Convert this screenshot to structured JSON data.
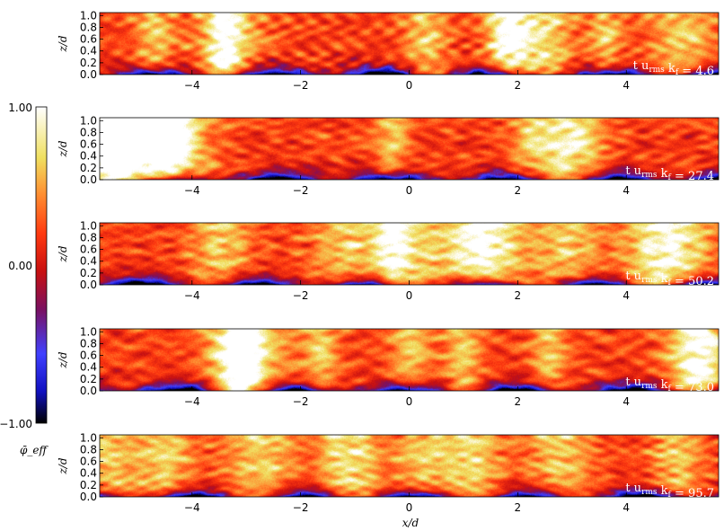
{
  "chart_data": {
    "type": "heatmap",
    "colormap": [
      "#000000",
      "#1010c0",
      "#4040ff",
      "#7a1060",
      "#c81010",
      "#ff3a10",
      "#ff8c30",
      "#f0e060",
      "#ffffff"
    ],
    "colorbar": {
      "min": -1.0,
      "max": 1.0,
      "tick_labels": [
        "1.00",
        "0.00",
        "−1.00"
      ],
      "label": "φ̄_eff"
    },
    "x_axis": {
      "range": [
        -5.7,
        5.7
      ],
      "ticks": [
        -4,
        -2,
        0,
        2,
        4
      ],
      "tick_labels": [
        "−4",
        "−2",
        "0",
        "2",
        "4"
      ],
      "label": "x/d"
    },
    "y_axis": {
      "range": [
        0,
        1.05
      ],
      "ticks": [
        0,
        0.2,
        0.4,
        0.6,
        0.8,
        1.0
      ],
      "tick_labels": [
        "0.0",
        "0.2",
        "0.4",
        "0.6",
        "0.8",
        "1.0"
      ],
      "label": "z/d"
    },
    "panels": [
      {
        "time_prefix": "t u",
        "time_sub": "rms",
        "time_mid": " k",
        "time_sub2": "f",
        "time_value": " = 4.6",
        "seed": 11
      },
      {
        "time_prefix": "t u",
        "time_sub": "rms",
        "time_mid": " k",
        "time_sub2": "f",
        "time_value": " = 27.4",
        "seed": 23
      },
      {
        "time_prefix": "t u",
        "time_sub": "rms",
        "time_mid": " k",
        "time_sub2": "f",
        "time_value": " = 50.2",
        "seed": 37
      },
      {
        "time_prefix": "t u",
        "time_sub": "rms",
        "time_mid": " k",
        "time_sub2": "f",
        "time_value": " = 73.0",
        "seed": 41
      },
      {
        "time_prefix": "t u",
        "time_sub": "rms",
        "time_mid": " k",
        "time_sub2": "f",
        "time_value": " = 95.7",
        "seed": 53
      }
    ]
  }
}
